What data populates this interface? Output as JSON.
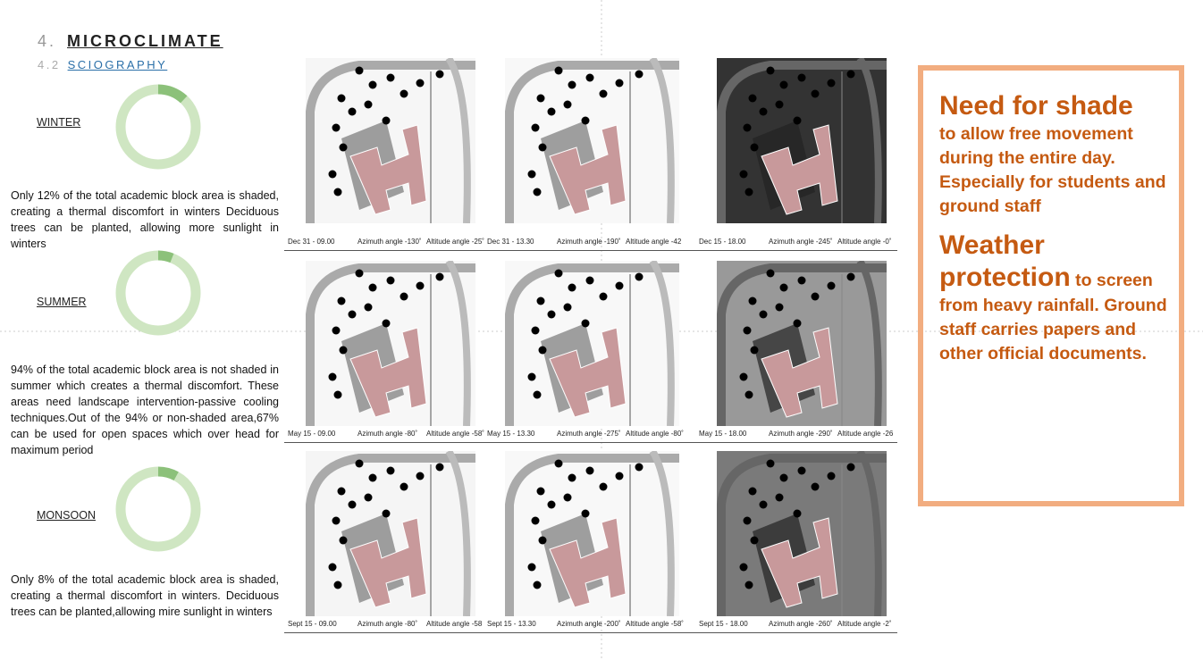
{
  "header": {
    "number": "4.",
    "title": "MICROCLIMATE",
    "sub_number": "4.2",
    "subtitle": "SCIOGRAPHY"
  },
  "seasons": [
    {
      "label": "WINTER",
      "shaded": 12,
      "not_shaded": 88,
      "text": "Only 12% of the total academic block area is shaded, creating a thermal discomfort in winters Deciduous trees can be planted, allowing  more sunlight in winters"
    },
    {
      "label": "SUMMER",
      "shaded": 6,
      "not_shaded": 94,
      "text": "94% of the total academic block area is not shaded in summer which creates a thermal discomfort. These areas need landscape intervention-passive cooling techniques.Out of the 94% or non-shaded area,67% can be used for open spaces which over head for maximum period"
    },
    {
      "label": "MONSOON",
      "shaded": 8,
      "not_shaded": 92,
      "text": "Only 8% of the total academic block area is shaded, creating a thermal discomfort in winters. Deciduous trees can be planted,allowing mire sunlight in winters"
    }
  ],
  "sciography": {
    "rows": [
      [
        {
          "time": "Dec 31 - 09.00",
          "azimuth": "Azimuth angle -130˚",
          "altitude": "Altitude angle -25˚"
        },
        {
          "time": "Dec 31 - 13.30",
          "azimuth": "Azimuth angle -190˚",
          "altitude": "Altitude angle -42"
        },
        {
          "time": "Dec 15 - 18.00",
          "azimuth": "Azimuth angle -245˚",
          "altitude": "Altitude angle -0˚"
        }
      ],
      [
        {
          "time": "May 15 - 09.00",
          "azimuth": "Azimuth angle -80˚",
          "altitude": "Altitude angle -58˚"
        },
        {
          "time": "May 15 - 13.30",
          "azimuth": "Azimuth angle -275˚",
          "altitude": "Altitude angle -80˚"
        },
        {
          "time": "May 15 - 18.00",
          "azimuth": "Azimuth angle -290˚",
          "altitude": "Altitude angle -26"
        }
      ],
      [
        {
          "time": "Sept 15 - 09.00",
          "azimuth": "Azimuth angle -80˚",
          "altitude": "Altitude angle -58"
        },
        {
          "time": "Sept 15 - 13.30",
          "azimuth": "Azimuth angle -200˚",
          "altitude": "Altitude angle -58˚"
        },
        {
          "time": "Sept 15 - 18.00",
          "azimuth": "Azimuth angle -260˚",
          "altitude": "Altitude angle -2˚"
        }
      ]
    ]
  },
  "callout": {
    "heading_1": "Need for shade",
    "text_1": "to allow free movement during the entire day. Especially for students and ground staff",
    "heading_2": "Weather protection",
    "text_2": "to screen from heavy rainfall. Ground staff carries papers and other official documents."
  }
}
